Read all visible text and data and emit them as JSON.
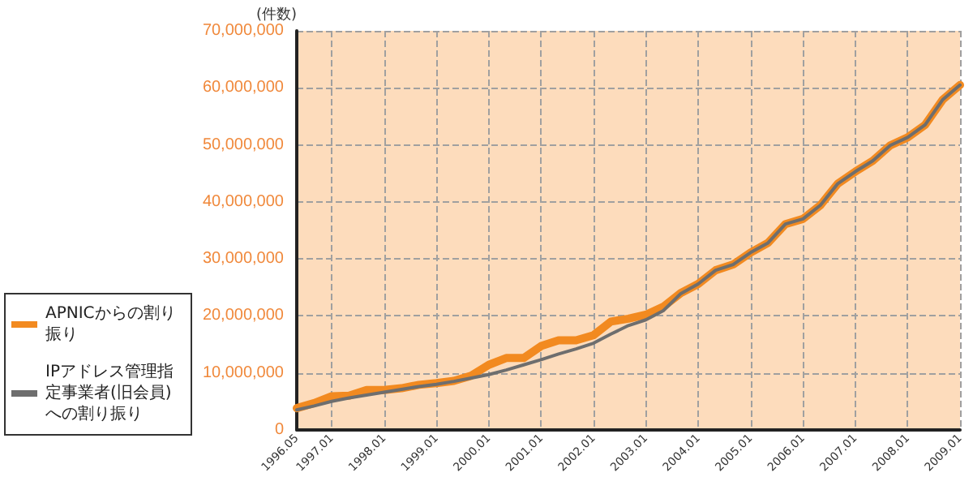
{
  "chart_data": {
    "type": "line",
    "ylabel": "(件数)",
    "categories": [
      "1996.05",
      null,
      "1997.01",
      null,
      null,
      "1998.01",
      null,
      null,
      "1999.01",
      null,
      null,
      "2000.01",
      null,
      null,
      "2001.01",
      null,
      null,
      "2002.01",
      null,
      null,
      "2003.01",
      null,
      null,
      "2004.01",
      null,
      null,
      "2005.01",
      null,
      null,
      "2006.01",
      null,
      null,
      "2007.01",
      null,
      null,
      "2008.01",
      null,
      null,
      "2009.01"
    ],
    "series": [
      {
        "name": "APNICからの割り振り",
        "color": "#f28a20",
        "values": [
          3800000,
          4700000,
          5900000,
          6000000,
          7000000,
          7000000,
          7300000,
          7900000,
          8200000,
          8600000,
          9500000,
          11400000,
          12600000,
          12600000,
          14700000,
          15700000,
          15700000,
          16600000,
          19000000,
          19500000,
          20200000,
          21600000,
          24000000,
          25600000,
          28000000,
          29000000,
          31100000,
          32800000,
          36100000,
          37000000,
          39400000,
          43200000,
          45300000,
          47200000,
          49900000,
          51300000,
          53500000,
          57900000,
          60500000
        ]
      },
      {
        "name": "IPアドレス管理指定事業者(旧会員)への割り振り",
        "color": "#6e6e6e",
        "values": [
          3500000,
          4200000,
          5000000,
          5600000,
          6100000,
          6600000,
          7100000,
          7600000,
          8000000,
          8500000,
          9100000,
          9700000,
          10500000,
          11400000,
          12300000,
          13300000,
          14200000,
          15200000,
          16800000,
          18300000,
          19300000,
          20900000,
          23900000,
          25600000,
          28000000,
          29000000,
          31100000,
          32800000,
          36100000,
          37000000,
          39400000,
          43200000,
          45300000,
          47200000,
          49900000,
          51300000,
          53500000,
          57900000,
          60500000
        ]
      }
    ],
    "ylim": [
      0,
      70000000
    ],
    "yticks": [
      0,
      {
        "value": 10000000,
        "label": "10,000,000"
      },
      {
        "value": 20000000,
        "label": "20,000,000"
      },
      {
        "value": 30000000,
        "label": "30,000,000"
      },
      {
        "value": 40000000,
        "label": "40,000,000"
      },
      {
        "value": 50000000,
        "label": "50,000,000"
      },
      {
        "value": 60000000,
        "label": "60,000,000"
      },
      {
        "value": 70000000,
        "label": "70,000,000"
      }
    ],
    "grid": true,
    "legend": "bottom left",
    "marker": "none",
    "line_style": "solid"
  }
}
